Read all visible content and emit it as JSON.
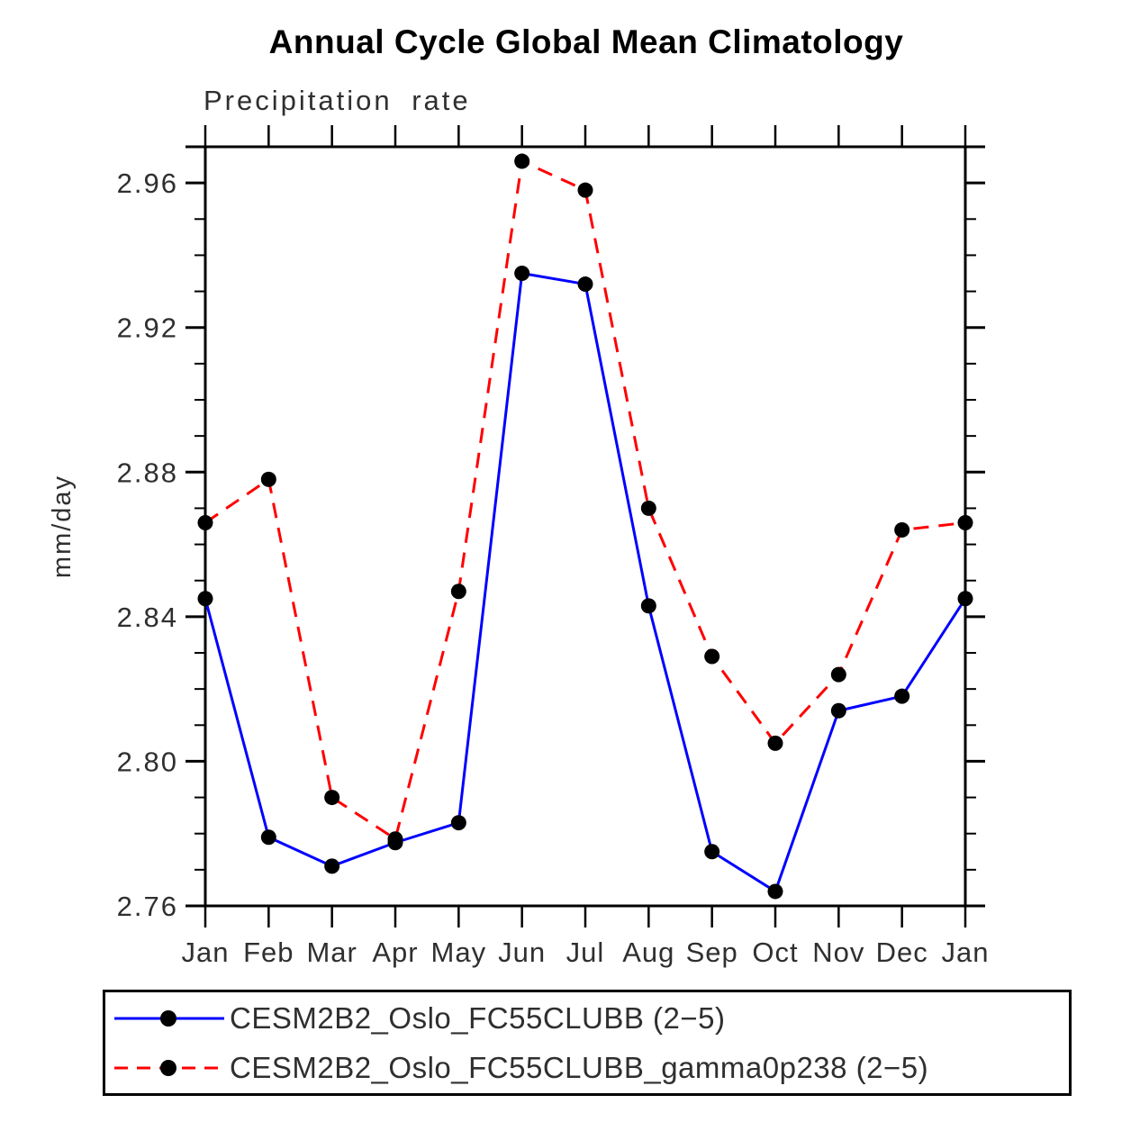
{
  "page": {
    "background_color": "#ffffff",
    "text_color": "#2f2f2f",
    "axis_color": "#000000"
  },
  "chart_data": {
    "type": "line",
    "title": "Annual Cycle Global Mean Climatology",
    "subtitle": "Precipitation rate",
    "xlabel": "",
    "ylabel": "mm/day",
    "categories": [
      "Jan",
      "Feb",
      "Mar",
      "Apr",
      "May",
      "Jun",
      "Jul",
      "Aug",
      "Sep",
      "Oct",
      "Nov",
      "Dec",
      "Jan"
    ],
    "series": [
      {
        "name": "CESM2B2_Oslo_FC55CLUBB (2−5)",
        "color": "#0000ff",
        "line_style": "solid",
        "marker": "circle",
        "marker_color": "#000000",
        "values": [
          2.845,
          2.779,
          2.771,
          2.7775,
          2.783,
          2.935,
          2.932,
          2.843,
          2.775,
          2.764,
          2.814,
          2.818,
          2.845
        ]
      },
      {
        "name": "CESM2B2_Oslo_FC55CLUBB_gamma0p238 (2−5)",
        "color": "#ff0000",
        "line_style": "dashed",
        "marker": "circle",
        "marker_color": "#000000",
        "values": [
          2.866,
          2.878,
          2.79,
          2.7785,
          2.847,
          2.966,
          2.958,
          2.87,
          2.829,
          2.805,
          2.824,
          2.864,
          2.866
        ]
      }
    ],
    "ylim": [
      2.76,
      2.97
    ],
    "yticks_major": [
      2.76,
      2.8,
      2.84,
      2.88,
      2.92,
      2.96
    ],
    "ytick_minor_step": 0.01,
    "ytick_label_format": "0.00",
    "grid": false,
    "tick_direction": "out",
    "legend_position": "bottom"
  }
}
